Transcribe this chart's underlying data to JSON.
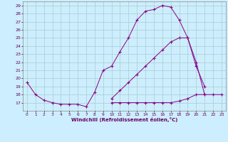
{
  "xlabel": "Windchill (Refroidissement éolien,°C)",
  "background_color": "#cceeff",
  "grid_color": "#aacccc",
  "line_color": "#880088",
  "xlim": [
    -0.5,
    23.5
  ],
  "ylim": [
    16.0,
    29.5
  ],
  "yticks": [
    17,
    18,
    19,
    20,
    21,
    22,
    23,
    24,
    25,
    26,
    27,
    28,
    29
  ],
  "xticks": [
    0,
    1,
    2,
    3,
    4,
    5,
    6,
    7,
    8,
    9,
    10,
    11,
    12,
    13,
    14,
    15,
    16,
    17,
    18,
    19,
    20,
    21,
    22,
    23
  ],
  "series1_x": [
    0,
    1,
    2,
    3,
    4,
    5,
    6,
    7,
    8,
    9,
    10,
    11,
    12,
    13,
    14,
    15,
    16,
    17,
    18,
    19,
    20,
    21
  ],
  "series1_y": [
    19.5,
    18.0,
    17.3,
    17.0,
    16.8,
    16.8,
    16.8,
    16.5,
    18.3,
    21.0,
    21.5,
    23.3,
    25.0,
    27.2,
    28.3,
    28.5,
    29.0,
    28.8,
    27.2,
    25.0,
    21.5,
    19.0
  ],
  "series2_x": [
    10,
    11,
    12,
    13,
    14,
    15,
    16,
    17,
    18,
    19,
    20,
    21,
    22,
    23
  ],
  "series2_y": [
    17.0,
    17.0,
    17.0,
    17.0,
    17.0,
    17.0,
    17.0,
    17.0,
    17.2,
    17.5,
    18.0,
    18.0,
    18.0,
    18.0
  ],
  "series3_x": [
    10,
    11,
    12,
    13,
    14,
    15,
    16,
    17,
    18,
    19,
    20,
    21
  ],
  "series3_y": [
    17.5,
    18.5,
    19.5,
    20.5,
    21.5,
    22.5,
    23.5,
    24.5,
    25.0,
    25.0,
    22.0,
    18.0
  ]
}
